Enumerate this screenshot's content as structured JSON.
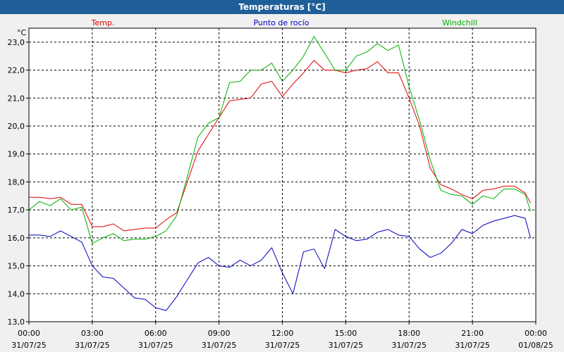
{
  "window": {
    "title": "Temperaturas [°C]"
  },
  "chart_data": {
    "type": "line",
    "title": "Temperaturas [°C]",
    "ylabel": "°C",
    "ylim": [
      13.0,
      23.5
    ],
    "yticks": [
      "13,0",
      "14,0",
      "15,0",
      "16,0",
      "17,0",
      "18,0",
      "19,0",
      "20,0",
      "21,0",
      "22,0",
      "23,0"
    ],
    "xticks": [
      {
        "time": "00:00",
        "date": "31/07/25"
      },
      {
        "time": "03:00",
        "date": "31/07/25"
      },
      {
        "time": "06:00",
        "date": "31/07/25"
      },
      {
        "time": "09:00",
        "date": "31/07/25"
      },
      {
        "time": "12:00",
        "date": "31/07/25"
      },
      {
        "time": "15:00",
        "date": "31/07/25"
      },
      {
        "time": "18:00",
        "date": "31/07/25"
      },
      {
        "time": "21:00",
        "date": "31/07/25"
      },
      {
        "time": "00:00",
        "date": "01/08/25"
      }
    ],
    "x_hours": [
      0,
      0.5,
      1,
      1.5,
      2,
      2.5,
      3,
      3.5,
      4,
      4.5,
      5,
      5.5,
      6,
      6.5,
      7,
      7.5,
      8,
      8.5,
      9,
      9.5,
      10,
      10.5,
      11,
      11.5,
      12,
      12.5,
      13,
      13.5,
      14,
      14.5,
      15,
      15.5,
      16,
      16.5,
      17,
      17.5,
      18,
      18.5,
      19,
      19.5,
      20,
      20.5,
      21,
      21.5,
      22,
      22.5,
      23,
      23.5,
      23.75
    ],
    "grid": true,
    "legend_position": "top",
    "series": [
      {
        "name": "Temp.",
        "color": "#e00000",
        "values": [
          17.45,
          17.45,
          17.4,
          17.45,
          17.2,
          17.2,
          16.4,
          16.4,
          16.5,
          16.25,
          16.3,
          16.35,
          16.35,
          16.65,
          16.9,
          18.0,
          19.1,
          19.7,
          20.3,
          20.9,
          20.95,
          21.0,
          21.5,
          21.6,
          21.05,
          21.5,
          21.9,
          22.35,
          22.0,
          22.0,
          21.9,
          22.0,
          22.05,
          22.3,
          21.9,
          21.9,
          21.0,
          20.0,
          18.5,
          17.9,
          17.75,
          17.55,
          17.4,
          17.7,
          17.75,
          17.85,
          17.85,
          17.6,
          17.25
        ]
      },
      {
        "name": "Punto de rocío",
        "color": "#0000c0",
        "values": [
          16.1,
          16.1,
          16.05,
          16.25,
          16.05,
          15.85,
          15.0,
          14.6,
          14.55,
          14.2,
          13.85,
          13.8,
          13.5,
          13.4,
          13.9,
          14.5,
          15.1,
          15.3,
          15.0,
          14.95,
          15.2,
          15.0,
          15.2,
          15.65,
          14.75,
          14.0,
          15.5,
          15.6,
          14.9,
          16.3,
          16.05,
          15.9,
          15.95,
          16.2,
          16.3,
          16.1,
          16.05,
          15.6,
          15.3,
          15.45,
          15.8,
          16.3,
          16.15,
          16.45,
          16.6,
          16.7,
          16.8,
          16.7,
          16.0
        ]
      },
      {
        "name": "Windchill",
        "color": "#00b000",
        "values": [
          17.0,
          17.3,
          17.15,
          17.4,
          17.0,
          17.1,
          15.8,
          16.0,
          16.15,
          15.9,
          15.95,
          15.95,
          16.05,
          16.25,
          16.8,
          18.2,
          19.6,
          20.1,
          20.3,
          21.55,
          21.6,
          22.0,
          22.0,
          22.25,
          21.6,
          22.0,
          22.5,
          23.2,
          22.6,
          22.0,
          22.0,
          22.5,
          22.65,
          22.95,
          22.7,
          22.9,
          21.4,
          20.2,
          18.8,
          17.7,
          17.55,
          17.5,
          17.2,
          17.5,
          17.4,
          17.75,
          17.75,
          17.55,
          16.95
        ]
      }
    ]
  }
}
